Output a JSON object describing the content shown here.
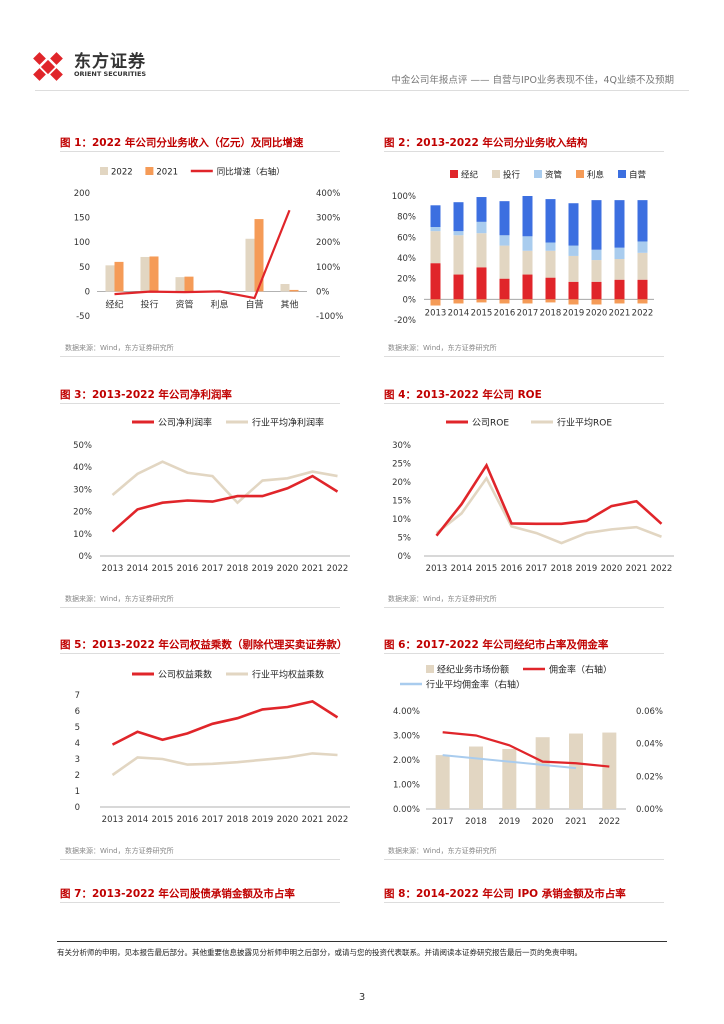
{
  "header": {
    "logo_cn": "东方证券",
    "logo_en": "ORIENT SECURITIES",
    "subtitle": "中金公司年报点评 —— 自营与IPO业务表现不佳，4Q业绩不及预期"
  },
  "source_note": "数据来源：Wind，东方证券研究所",
  "colors": {
    "red": "#e0252a",
    "orange": "#f59b57",
    "beige": "#e2d6c2",
    "lightblue": "#a9ccee",
    "blue": "#3c6fe0"
  },
  "chart_data": [
    {
      "id": "fig1",
      "type": "bar",
      "title": "图 1：2022 年公司分业务收入（亿元）及同比增速",
      "categories": [
        "经纪",
        "投行",
        "资管",
        "利息",
        "自营",
        "其他"
      ],
      "series": [
        {
          "name": "2022",
          "values": [
            53,
            70,
            29,
            0,
            107,
            15
          ]
        },
        {
          "name": "2021",
          "values": [
            60,
            71,
            30,
            0,
            147,
            3
          ]
        },
        {
          "name": "同比增速（右轴）",
          "axis": "right",
          "values": [
            -11,
            -1,
            -3,
            0,
            -27,
            330
          ]
        }
      ],
      "ylim": [
        -50,
        200
      ],
      "yticks": [
        "200",
        "150",
        "100",
        "50",
        "0",
        "-50"
      ],
      "y2lim": [
        -100,
        400
      ],
      "y2ticks": [
        "400%",
        "300%",
        "200%",
        "100%",
        "0%",
        "-100%"
      ]
    },
    {
      "id": "fig2",
      "type": "bar",
      "title": "图 2：2013-2022 年公司分业务收入结构",
      "categories": [
        "2013",
        "2014",
        "2015",
        "2016",
        "2017",
        "2018",
        "2019",
        "2020",
        "2021",
        "2022"
      ],
      "series": [
        {
          "name": "经纪",
          "values": [
            35,
            24,
            31,
            20,
            24,
            21,
            17,
            17,
            19,
            19
          ]
        },
        {
          "name": "投行",
          "values": [
            31,
            38,
            33,
            32,
            23,
            26,
            25,
            21,
            20,
            26
          ]
        },
        {
          "name": "资管",
          "values": [
            4,
            4,
            11,
            10,
            14,
            8,
            10,
            10,
            11,
            11
          ]
        },
        {
          "name": "利息",
          "values": [
            -6,
            -4,
            -3,
            -4,
            -4,
            -3,
            -5,
            -5,
            -4,
            -4
          ]
        },
        {
          "name": "自营",
          "values": [
            21,
            28,
            24,
            33,
            39,
            42,
            41,
            48,
            46,
            40
          ]
        }
      ],
      "ylim": [
        -20,
        100
      ],
      "yticks": [
        "100%",
        "80%",
        "60%",
        "40%",
        "20%",
        "0%",
        "-20%"
      ]
    },
    {
      "id": "fig3",
      "type": "line",
      "title": "图 3：2013-2022 年公司净利润率",
      "categories": [
        "2013",
        "2014",
        "2015",
        "2016",
        "2017",
        "2018",
        "2019",
        "2020",
        "2021",
        "2022"
      ],
      "series": [
        {
          "name": "公司净利润率",
          "values": [
            11,
            21,
            24,
            25,
            24.5,
            27,
            27,
            30.5,
            36,
            29
          ]
        },
        {
          "name": "行业平均净利润率",
          "values": [
            27.5,
            37,
            42.5,
            37.5,
            36,
            24,
            34,
            35,
            38,
            36
          ]
        }
      ],
      "ylim": [
        0,
        50
      ],
      "yticks": [
        "50%",
        "40%",
        "30%",
        "20%",
        "10%",
        "0%"
      ]
    },
    {
      "id": "fig4",
      "type": "line",
      "title": "图 4：2013-2022 年公司 ROE",
      "categories": [
        "2013",
        "2014",
        "2015",
        "2016",
        "2017",
        "2018",
        "2019",
        "2020",
        "2021",
        "2022"
      ],
      "series": [
        {
          "name": "公司ROE",
          "values": [
            5.5,
            14,
            24.5,
            8.8,
            8.7,
            8.7,
            9.5,
            13.5,
            14.8,
            8.7
          ]
        },
        {
          "name": "行业平均ROE",
          "values": [
            6.2,
            11.5,
            21,
            8,
            6.2,
            3.5,
            6.2,
            7.2,
            7.8,
            5.2
          ]
        }
      ],
      "ylim": [
        0,
        30
      ],
      "yticks": [
        "30%",
        "25%",
        "20%",
        "15%",
        "10%",
        "5%",
        "0%"
      ]
    },
    {
      "id": "fig5",
      "type": "line",
      "title": "图 5：2013-2022 年公司权益乘数（剔除代理买卖证券款）",
      "categories": [
        "2013",
        "2014",
        "2015",
        "2016",
        "2017",
        "2018",
        "2019",
        "2020",
        "2021",
        "2022"
      ],
      "series": [
        {
          "name": "公司权益乘数",
          "values": [
            3.9,
            4.7,
            4.2,
            4.6,
            5.2,
            5.55,
            6.1,
            6.25,
            6.6,
            5.6
          ]
        },
        {
          "name": "行业平均权益乘数",
          "values": [
            2.0,
            3.1,
            3.0,
            2.65,
            2.7,
            2.8,
            2.95,
            3.1,
            3.35,
            3.25
          ]
        }
      ],
      "ylim": [
        0,
        7
      ],
      "yticks": [
        "7",
        "6",
        "5",
        "4",
        "3",
        "2",
        "1",
        "0"
      ]
    },
    {
      "id": "fig6",
      "type": "bar",
      "title": "图 6：2017-2022 年公司经纪市占率及佣金率",
      "categories": [
        "2017",
        "2018",
        "2019",
        "2020",
        "2021",
        "2022"
      ],
      "series": [
        {
          "name": "经纪业务市场份额",
          "values": [
            2.2,
            2.55,
            2.45,
            2.93,
            3.08,
            3.12
          ]
        },
        {
          "name": "佣金率（右轴）",
          "axis": "right",
          "values": [
            0.047,
            0.045,
            0.039,
            0.029,
            0.028,
            0.026
          ]
        },
        {
          "name": "行业平均佣金率（右轴）",
          "axis": "right",
          "values": [
            0.033,
            0.031,
            0.029,
            0.027,
            0.025,
            null
          ]
        }
      ],
      "ylim": [
        0,
        4
      ],
      "yticks": [
        "4.00%",
        "3.00%",
        "2.00%",
        "1.00%",
        "0.00%"
      ],
      "y2lim": [
        0,
        0.06
      ],
      "y2ticks": [
        "0.06%",
        "0.04%",
        "0.02%",
        "0.00%"
      ]
    }
  ],
  "fig7_title": "图 7：2013-2022 年公司股债承销金额及市占率",
  "fig8_title": "图 8：2014-2022 年公司 IPO 承销金额及市占率",
  "disclaimer": "有关分析师的申明，见本报告最后部分。其他重要信息披露见分析师申明之后部分，或请与您的投资代表联系。并请阅读本证券研究报告最后一页的免责申明。",
  "page_number": "3"
}
